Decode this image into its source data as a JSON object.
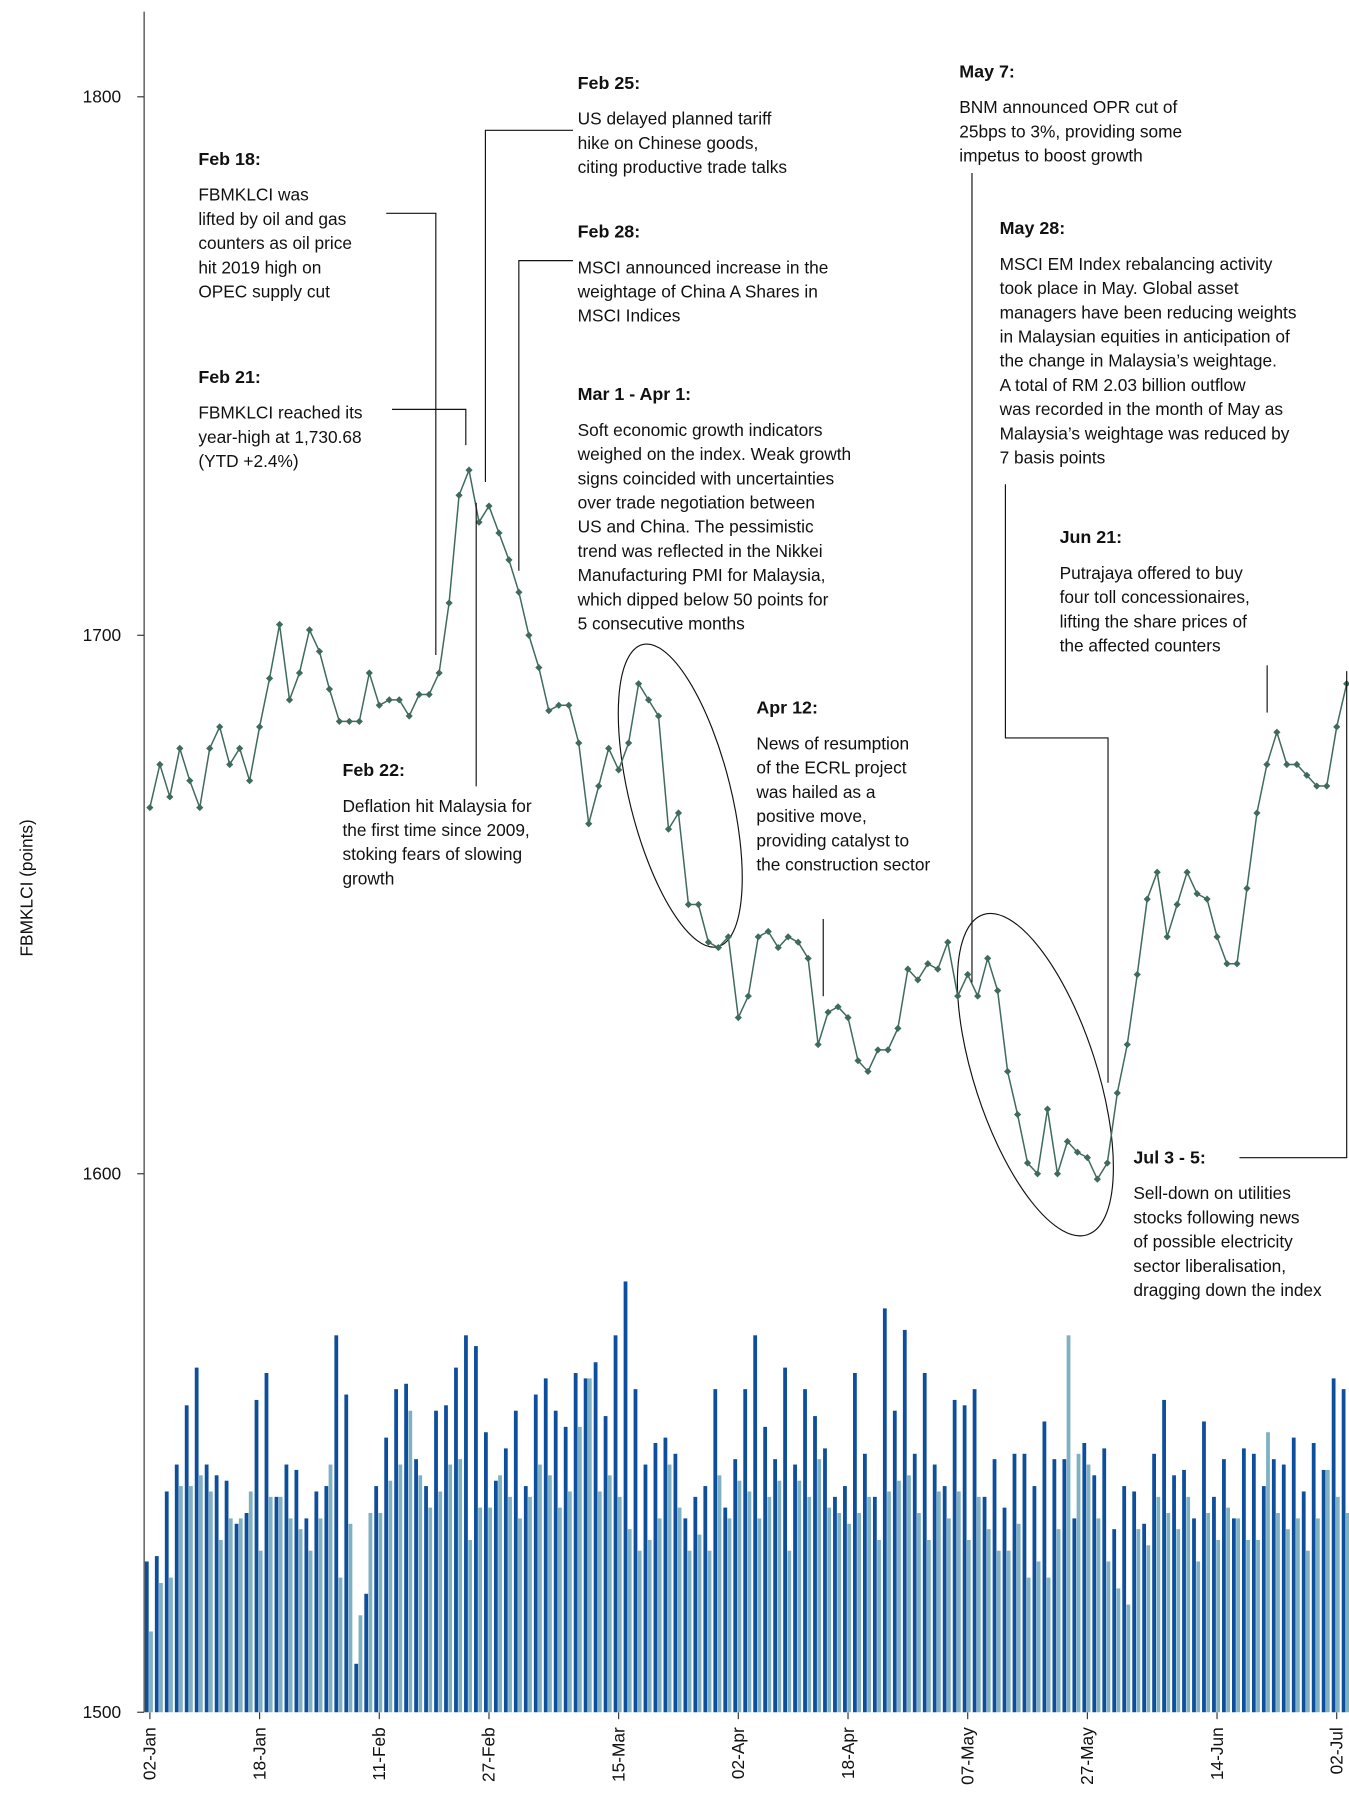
{
  "chart_data": {
    "type": "line",
    "ylabel": "FBMKLCI (points)",
    "ylim": [
      1500,
      1810
    ],
    "yticks": [
      1500,
      1600,
      1700,
      1800
    ],
    "xlim": [
      0,
      120
    ],
    "xticks": [
      {
        "value": 0,
        "label": "02-Jan"
      },
      {
        "value": 11,
        "label": "18-Jan"
      },
      {
        "value": 23,
        "label": "11-Feb"
      },
      {
        "value": 34,
        "label": "27-Feb"
      },
      {
        "value": 47,
        "label": "15-Mar"
      },
      {
        "value": 59,
        "label": "02-Apr"
      },
      {
        "value": 70,
        "label": "18-Apr"
      },
      {
        "value": 82,
        "label": "07-May"
      },
      {
        "value": 94,
        "label": "27-May"
      },
      {
        "value": 107,
        "label": "14-Jun"
      },
      {
        "value": 119,
        "label": "02-Jul"
      }
    ],
    "series": [
      {
        "color": "#3f6b5c",
        "values": [
          1668,
          1676,
          1670,
          1679,
          1673,
          1668,
          1679,
          1683,
          1676,
          1679,
          1673,
          1683,
          1692,
          1702,
          1688,
          1693,
          1701,
          1697,
          1690,
          1684,
          1684,
          1684,
          1693,
          1687,
          1688,
          1688,
          1685,
          1689,
          1689,
          1693,
          1706,
          1726,
          1730.68,
          1721,
          1724,
          1719,
          1714,
          1708,
          1700,
          1694,
          1686,
          1687,
          1687,
          1680,
          1665,
          1672,
          1679,
          1675,
          1680,
          1691,
          1688,
          1685,
          1664,
          1667,
          1650,
          1650,
          1643,
          1642,
          1644,
          1629,
          1633,
          1644,
          1645,
          1642,
          1644,
          1643,
          1640,
          1624,
          1630,
          1631,
          1629,
          1621,
          1619,
          1623,
          1623,
          1627,
          1638,
          1636,
          1639,
          1638,
          1643,
          1633,
          1637,
          1633,
          1640,
          1634,
          1619,
          1611,
          1602,
          1600,
          1612,
          1600,
          1606,
          1604,
          1603,
          1599,
          1602,
          1615,
          1624,
          1637,
          1651,
          1656,
          1644,
          1650,
          1656,
          1652,
          1651,
          1644,
          1639,
          1639,
          1653,
          1667,
          1676,
          1682,
          1676,
          1676,
          1674,
          1672,
          1672,
          1683,
          1691
        ]
      }
    ],
    "bar_series": [
      {
        "color": "#0d4f9c",
        "values": [
          1528,
          1529,
          1541,
          1546,
          1557,
          1564,
          1546,
          1544,
          1543,
          1535,
          1537,
          1558,
          1563,
          1540,
          1546,
          1545,
          1536,
          1541,
          1542,
          1570,
          1559,
          1509,
          1522,
          1542,
          1551,
          1560,
          1561,
          1547,
          1542,
          1556,
          1557,
          1564,
          1570,
          1568,
          1552,
          1543,
          1549,
          1556,
          1542,
          1559,
          1562,
          1556,
          1553,
          1563,
          1562,
          1565,
          1555,
          1570,
          1580,
          1560,
          1546,
          1550,
          1551,
          1548,
          1536,
          1540,
          1542,
          1560,
          1538,
          1547,
          1560,
          1570,
          1553,
          1547,
          1564,
          1546,
          1560,
          1555,
          1549,
          1540,
          1542,
          1563,
          1548,
          1540,
          1575,
          1556,
          1571,
          1548,
          1563,
          1546,
          1542,
          1558,
          1557,
          1560,
          1540,
          1547,
          1538,
          1548,
          1548,
          1542,
          1554,
          1547,
          1547,
          1536,
          1550,
          1544,
          1549,
          1534,
          1542,
          1541,
          1535,
          1548,
          1558,
          1544,
          1545,
          1536,
          1554,
          1540,
          1547,
          1536,
          1549,
          1548,
          1542,
          1547,
          1546,
          1551,
          1541,
          1550,
          1545,
          1562,
          1560
        ]
      },
      {
        "color": "#7fb1c3",
        "values": [
          1515,
          1524,
          1525,
          1542,
          1542,
          1544,
          1541,
          1532,
          1536,
          1536,
          1541,
          1530,
          1540,
          1540,
          1536,
          1534,
          1530,
          1536,
          1546,
          1525,
          1535,
          1518,
          1537,
          1537,
          1543,
          1546,
          1556,
          1544,
          1538,
          1541,
          1546,
          1547,
          1532,
          1538,
          1538,
          1544,
          1540,
          1536,
          1540,
          1546,
          1544,
          1538,
          1541,
          1553,
          1562,
          1541,
          1544,
          1540,
          1534,
          1530,
          1532,
          1536,
          1546,
          1538,
          1530,
          1533,
          1530,
          1544,
          1536,
          1543,
          1541,
          1536,
          1540,
          1543,
          1530,
          1543,
          1540,
          1547,
          1538,
          1537,
          1535,
          1537,
          1540,
          1532,
          1541,
          1543,
          1544,
          1537,
          1532,
          1541,
          1536,
          1541,
          1532,
          1540,
          1534,
          1530,
          1530,
          1535,
          1525,
          1528,
          1525,
          1534,
          1570,
          1548,
          1546,
          1536,
          1528,
          1523,
          1520,
          1534,
          1531,
          1540,
          1537,
          1534,
          1540,
          1528,
          1537,
          1532,
          1538,
          1536,
          1532,
          1532,
          1552,
          1537,
          1534,
          1536,
          1530,
          1536,
          1545,
          1540,
          1537
        ]
      }
    ],
    "annotations": [
      {
        "title": "Feb 18:",
        "lines": [
          "FBMKLCI was",
          "lifted by oil and gas",
          "counters as oil price",
          "hit 2019 high on",
          "OPEC supply cut"
        ]
      },
      {
        "title": "Feb 21:",
        "lines": [
          "FBMKLCI reached its",
          "year-high at 1,730.68",
          "(YTD +2.4%)"
        ]
      },
      {
        "title": "Feb 22:",
        "lines": [
          "Deflation hit Malaysia for",
          "the first time since 2009,",
          "stoking fears of slowing",
          "growth"
        ]
      },
      {
        "title": "Feb 25:",
        "lines": [
          "US delayed planned tariff",
          "hike on Chinese goods,",
          "citing productive trade talks"
        ]
      },
      {
        "title": "Feb 28:",
        "lines": [
          "MSCI announced increase in the",
          "weightage of China A Shares in",
          "MSCI Indices"
        ]
      },
      {
        "title": "Mar 1 - Apr 1:",
        "lines": [
          "Soft economic growth indicators",
          "weighed on the index. Weak growth",
          "signs coincided with uncertainties",
          "over trade negotiation between",
          "US and China. The pessimistic",
          "trend was reflected in the Nikkei",
          "Manufacturing PMI for Malaysia,",
          "which dipped below 50 points for",
          "5 consecutive months"
        ]
      },
      {
        "title": "Apr 12:",
        "lines": [
          "News of resumption",
          "of the ECRL project",
          "was hailed as a",
          "positive move,",
          "providing catalyst to",
          "the construction sector"
        ]
      },
      {
        "title": "May 7:",
        "lines": [
          "BNM announced OPR cut of",
          "25bps to 3%, providing some",
          "impetus to boost growth"
        ]
      },
      {
        "title": "May 28:",
        "lines": [
          "MSCI EM Index rebalancing activity",
          "took place in May. Global asset",
          "managers have been reducing weights",
          "in Malaysian equities in anticipation of",
          "the change in Malaysia’s weightage.",
          "A total of RM 2.03 billion outflow",
          "was recorded in the month of May as",
          "Malaysia’s weightage was reduced by",
          "7 basis points"
        ]
      },
      {
        "title": "Jun 21:",
        "lines": [
          "Putrajaya offered to buy",
          "four toll concessionaires,",
          "lifting the share prices of",
          "the affected counters"
        ]
      },
      {
        "title": "Jul 3 - 5:",
        "lines": [
          "Sell-down on utilities",
          "stocks following news",
          "of possible electricity",
          "sector liberalisation,",
          "dragging down the index"
        ]
      }
    ]
  }
}
